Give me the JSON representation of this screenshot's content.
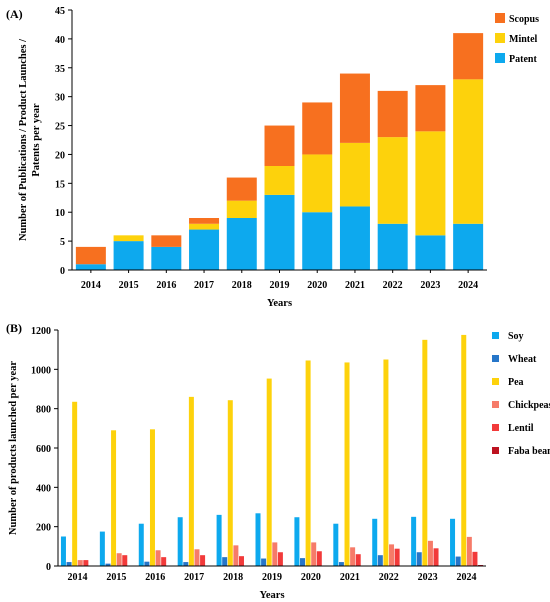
{
  "chart_data": [
    {
      "type": "bar",
      "stacked": true,
      "panel_label": "(A)",
      "categories": [
        "2014",
        "2015",
        "2016",
        "2017",
        "2018",
        "2019",
        "2020",
        "2021",
        "2022",
        "2023",
        "2024"
      ],
      "series": [
        {
          "name": "Patent",
          "color": "#0da9ee",
          "values": [
            1,
            5,
            4,
            7,
            9,
            13,
            10,
            11,
            8,
            6,
            8
          ]
        },
        {
          "name": "Mintel",
          "color": "#fdd20c",
          "values": [
            0,
            1,
            0,
            1,
            3,
            5,
            10,
            11,
            15,
            18,
            25
          ]
        },
        {
          "name": "Scopus",
          "color": "#f7701f",
          "values": [
            3,
            0,
            2,
            1,
            4,
            7,
            9,
            12,
            8,
            8,
            8
          ]
        }
      ],
      "legend_order": [
        "Scopus",
        "Mintel",
        "Patent"
      ],
      "legend_position": "top-right",
      "xlabel": "Years",
      "ylabel": [
        "Number of Publications / Product Launches /",
        "Patents per year"
      ],
      "ylim": [
        0,
        45
      ],
      "yticks": [
        "0",
        "5",
        "10",
        "15",
        "20",
        "25",
        "30",
        "35",
        "40",
        "45"
      ],
      "grid": false
    },
    {
      "type": "bar",
      "stacked": false,
      "panel_label": "(B)",
      "categories": [
        "2014",
        "2015",
        "2016",
        "2017",
        "2018",
        "2019",
        "2020",
        "2021",
        "2022",
        "2023",
        "2024"
      ],
      "series": [
        {
          "name": "Soy",
          "color": "#0da9ee",
          "values": [
            150,
            175,
            215,
            248,
            260,
            268,
            248,
            215,
            240,
            250,
            240
          ]
        },
        {
          "name": "Wheat",
          "color": "#2676c9",
          "values": [
            20,
            12,
            22,
            20,
            45,
            38,
            40,
            20,
            55,
            70,
            48
          ]
        },
        {
          "name": "Pea",
          "color": "#fdd20c",
          "values": [
            835,
            690,
            695,
            860,
            843,
            953,
            1045,
            1035,
            1050,
            1150,
            1175
          ]
        },
        {
          "name": "Chickpeas",
          "color": "#f67b69",
          "values": [
            30,
            65,
            80,
            85,
            105,
            120,
            120,
            95,
            110,
            128,
            148
          ]
        },
        {
          "name": "Lentil",
          "color": "#f23a3a",
          "values": [
            30,
            55,
            45,
            55,
            50,
            70,
            75,
            60,
            88,
            90,
            72
          ]
        },
        {
          "name": "Faba beans",
          "color": "#bd1220",
          "values": [
            0,
            0,
            0,
            0,
            0,
            0,
            0,
            0,
            0,
            0,
            5
          ]
        }
      ],
      "legend_position": "right",
      "xlabel": "Years",
      "ylabel": "Number of products launched per year",
      "ylim": [
        0,
        1200
      ],
      "yticks": [
        "0",
        "200",
        "400",
        "600",
        "800",
        "1000",
        "1200"
      ],
      "grid": false
    }
  ]
}
